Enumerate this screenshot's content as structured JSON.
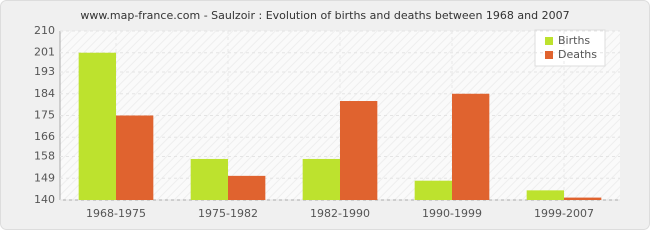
{
  "chart_data": {
    "type": "bar",
    "title": "www.map-france.com - Saulzoir : Evolution of births and deaths between 1968 and 2007",
    "categories": [
      "1968-1975",
      "1975-1982",
      "1982-1990",
      "1990-1999",
      "1999-2007"
    ],
    "series": [
      {
        "name": "Births",
        "color": "#bde22e",
        "values": [
          201,
          157,
          157,
          148,
          144
        ]
      },
      {
        "name": "Deaths",
        "color": "#e0632f",
        "values": [
          175,
          150,
          181,
          184,
          141
        ]
      }
    ],
    "ylim": [
      140,
      210
    ],
    "yticks": [
      140,
      149,
      158,
      166,
      175,
      184,
      193,
      201,
      210
    ],
    "grid": true,
    "legend": "top-right"
  }
}
